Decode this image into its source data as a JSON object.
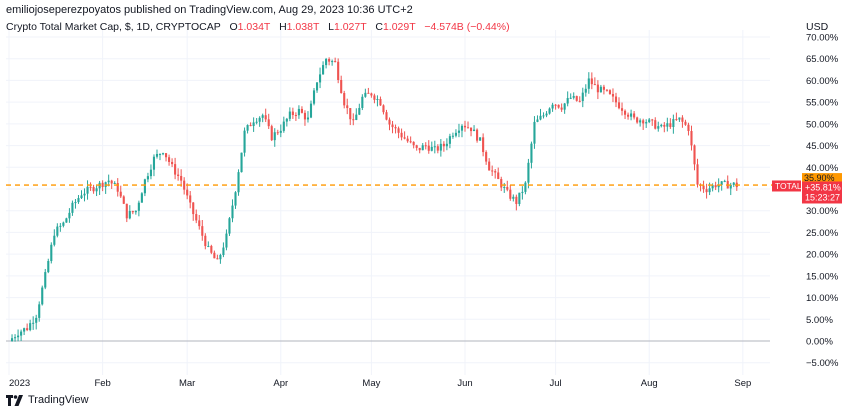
{
  "header": {
    "publisher": "emiliojoseperezpoyatos published on TradingView.com, Aug 29, 2023 10:36 UTC+2"
  },
  "legend": {
    "symbol": "Crypto Total Market Cap, $, 1D, CRYPTOCAP",
    "open_label": "O",
    "open_value": "1.034T",
    "high_label": "H",
    "high_value": "1.038T",
    "low_label": "L",
    "low_value": "1.027T",
    "close_label": "C",
    "close_value": "1.029T",
    "change": "−4.574B (−0.44%)"
  },
  "axis": {
    "currency": "USD"
  },
  "footer": {
    "brand": "TradingView",
    "brand_icon": "tradingview-logo-icon"
  },
  "price_tag": {
    "level": "35.90%",
    "symbol": "TOTAL",
    "value": "+35.81%",
    "countdown": "15:23:27",
    "level_color": "#ff9800",
    "tag_color": "#f23645"
  },
  "colors": {
    "up": "#26a69a",
    "down": "#ef5350",
    "grid": "#f0f3fa",
    "dashed": "#ff9800"
  },
  "chart_data": {
    "type": "candlestick",
    "title": "Crypto Total Market Cap, $, 1D, CRYPTOCAP",
    "y_unit": "% change",
    "ylim": [
      -7,
      70
    ],
    "y_ticks": [
      "70.00%",
      "65.00%",
      "60.00%",
      "55.00%",
      "50.00%",
      "45.00%",
      "40.00%",
      "35.00%",
      "30.00%",
      "25.00%",
      "20.00%",
      "15.00%",
      "10.00%",
      "5.00%",
      "0.00%",
      "−5.00%"
    ],
    "y_tick_values": [
      70,
      65,
      60,
      55,
      50,
      45,
      40,
      35,
      30,
      25,
      20,
      15,
      10,
      5,
      0,
      -5
    ],
    "x_ticks": [
      "2023",
      "Feb",
      "Mar",
      "Apr",
      "May",
      "Jun",
      "Jul",
      "Aug",
      "Sep"
    ],
    "x_tick_days": [
      1,
      32,
      60,
      91,
      121,
      152,
      182,
      213,
      244
    ],
    "x_range_days": [
      0,
      253
    ],
    "baseline": 0,
    "reference_level": 35.9,
    "last_value": 35.81,
    "series": [
      {
        "keypoints": [
          [
            1,
            0
          ],
          [
            4,
            2
          ],
          [
            7,
            3
          ],
          [
            10,
            6
          ],
          [
            13,
            15
          ],
          [
            16,
            25
          ],
          [
            19,
            27
          ],
          [
            22,
            31
          ],
          [
            25,
            34
          ],
          [
            28,
            35
          ],
          [
            31,
            36
          ],
          [
            34,
            37
          ],
          [
            37,
            35
          ],
          [
            40,
            29
          ],
          [
            43,
            30
          ],
          [
            46,
            37
          ],
          [
            49,
            42
          ],
          [
            52,
            44
          ],
          [
            55,
            40
          ],
          [
            58,
            37
          ],
          [
            61,
            31
          ],
          [
            64,
            26
          ],
          [
            67,
            21
          ],
          [
            70,
            18
          ],
          [
            73,
            24
          ],
          [
            76,
            35
          ],
          [
            79,
            48
          ],
          [
            82,
            51
          ],
          [
            85,
            52
          ],
          [
            88,
            47
          ],
          [
            91,
            49
          ],
          [
            94,
            52
          ],
          [
            97,
            53
          ],
          [
            100,
            51
          ],
          [
            103,
            60
          ],
          [
            106,
            65
          ],
          [
            109,
            64
          ],
          [
            112,
            55
          ],
          [
            115,
            50
          ],
          [
            118,
            56
          ],
          [
            121,
            57
          ],
          [
            124,
            55
          ],
          [
            127,
            50
          ],
          [
            130,
            48
          ],
          [
            133,
            46
          ],
          [
            136,
            44
          ],
          [
            139,
            45
          ],
          [
            142,
            44
          ],
          [
            145,
            45
          ],
          [
            148,
            48
          ],
          [
            151,
            50
          ],
          [
            154,
            49
          ],
          [
            157,
            46
          ],
          [
            160,
            40
          ],
          [
            163,
            37
          ],
          [
            166,
            34
          ],
          [
            169,
            32
          ],
          [
            172,
            36
          ],
          [
            175,
            50
          ],
          [
            178,
            52
          ],
          [
            181,
            55
          ],
          [
            184,
            54
          ],
          [
            187,
            56
          ],
          [
            190,
            55
          ],
          [
            193,
            60
          ],
          [
            196,
            58
          ],
          [
            199,
            57
          ],
          [
            202,
            55
          ],
          [
            205,
            53
          ],
          [
            208,
            51
          ],
          [
            211,
            51
          ],
          [
            214,
            50
          ],
          [
            217,
            49
          ],
          [
            220,
            50
          ],
          [
            223,
            51
          ],
          [
            226,
            49
          ],
          [
            229,
            36
          ],
          [
            232,
            35
          ],
          [
            235,
            36
          ],
          [
            238,
            36
          ],
          [
            241,
            36
          ],
          [
            242,
            35.81
          ]
        ]
      }
    ]
  }
}
